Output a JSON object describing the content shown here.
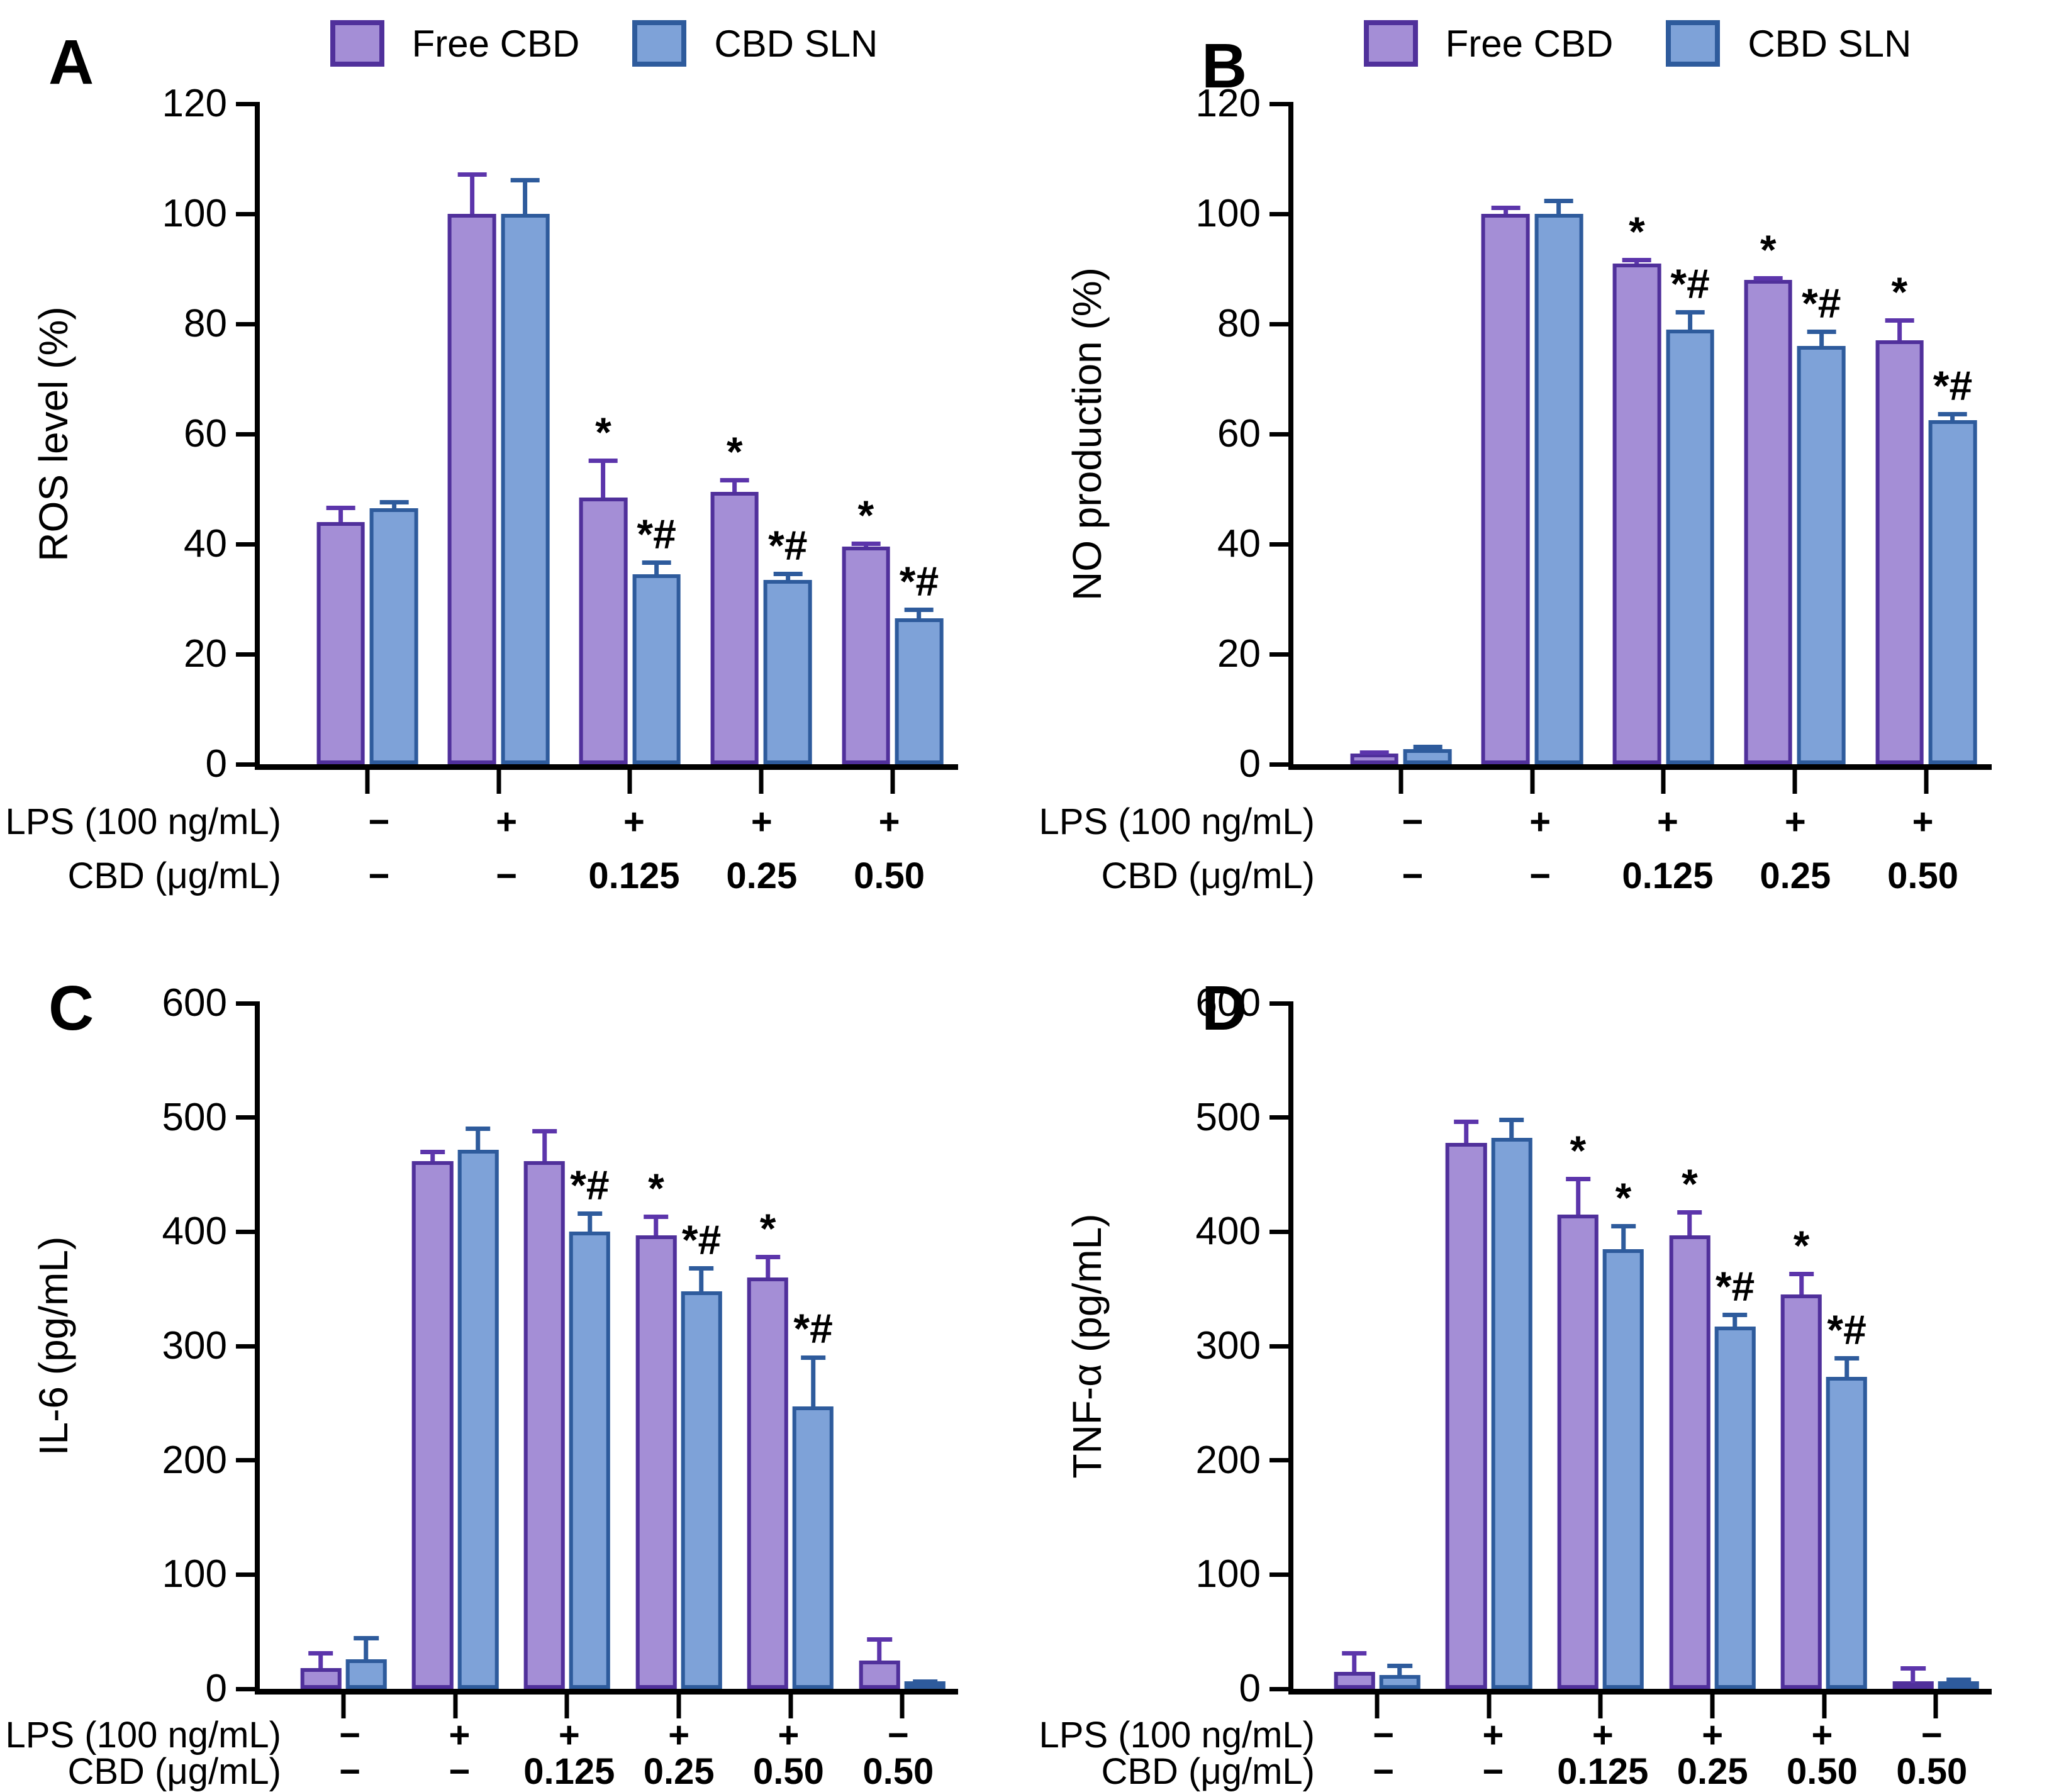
{
  "legend": {
    "items": [
      {
        "label": "Free CBD",
        "swatch": "purple-swatch"
      },
      {
        "label": "CBD SLN",
        "swatch": "blue-swatch"
      }
    ]
  },
  "colors": {
    "free_cbd_fill": "#a48ed6",
    "free_cbd_border": "#50309b",
    "free_cbd_error": "#5c35ab",
    "cbd_sln_fill": "#7ea2d8",
    "cbd_sln_border": "#2e5b9c",
    "cbd_sln_error": "#2e5b9c",
    "axis": "#000000"
  },
  "chart_data": [
    {
      "panel_label": "A",
      "type": "bar",
      "ylabel": "ROS level (%)",
      "ylim": [
        0,
        120
      ],
      "yticks": [
        0,
        20,
        40,
        60,
        80,
        100,
        120
      ],
      "series": [
        "Free CBD",
        "CBD SLN"
      ],
      "legend_position": "top",
      "grid": false,
      "xrows": [
        {
          "label": "LPS (100 ng/mL)"
        },
        {
          "label": "CBD (μg/mL)"
        }
      ],
      "groups": [
        {
          "lps": "−",
          "cbd": "−",
          "bars": [
            {
              "value": 44,
              "error": 3,
              "sig": ""
            },
            {
              "value": 46.5,
              "error": 1.5,
              "sig": ""
            }
          ]
        },
        {
          "lps": "+",
          "cbd": "−",
          "bars": [
            {
              "value": 100,
              "error": 7.5,
              "sig": ""
            },
            {
              "value": 100,
              "error": 6.5,
              "sig": ""
            }
          ]
        },
        {
          "lps": "+",
          "cbd": "0.125",
          "bars": [
            {
              "value": 48.5,
              "error": 7,
              "sig": "*"
            },
            {
              "value": 34.5,
              "error": 2.5,
              "sig": "*#"
            }
          ]
        },
        {
          "lps": "+",
          "cbd": "0.25",
          "bars": [
            {
              "value": 49.5,
              "error": 2.5,
              "sig": "*"
            },
            {
              "value": 33.5,
              "error": 1.5,
              "sig": "*#"
            }
          ]
        },
        {
          "lps": "+",
          "cbd": "0.50",
          "bars": [
            {
              "value": 39.5,
              "error": 1,
              "sig": "*"
            },
            {
              "value": 26.5,
              "error": 2,
              "sig": "*#"
            }
          ]
        }
      ]
    },
    {
      "panel_label": "B",
      "type": "bar",
      "ylabel": "NO production (%)",
      "ylim": [
        0,
        120
      ],
      "yticks": [
        0,
        20,
        40,
        60,
        80,
        100,
        120
      ],
      "series": [
        "Free CBD",
        "CBD SLN"
      ],
      "legend_position": "top",
      "grid": false,
      "xrows": [
        {
          "label": "LPS (100 ng/mL)"
        },
        {
          "label": "CBD (μg/mL)"
        }
      ],
      "groups": [
        {
          "lps": "−",
          "cbd": "−",
          "bars": [
            {
              "value": 2,
              "error": 0.5,
              "sig": ""
            },
            {
              "value": 2.7,
              "error": 0.8,
              "sig": ""
            }
          ]
        },
        {
          "lps": "+",
          "cbd": "−",
          "bars": [
            {
              "value": 100,
              "error": 1.5,
              "sig": ""
            },
            {
              "value": 100,
              "error": 2.7,
              "sig": ""
            }
          ]
        },
        {
          "lps": "+",
          "cbd": "0.125",
          "bars": [
            {
              "value": 91,
              "error": 1,
              "sig": "*"
            },
            {
              "value": 79,
              "error": 3.5,
              "sig": "*#"
            }
          ]
        },
        {
          "lps": "+",
          "cbd": "0.25",
          "bars": [
            {
              "value": 88,
              "error": 0.7,
              "sig": "*"
            },
            {
              "value": 76,
              "error": 3,
              "sig": "*#"
            }
          ]
        },
        {
          "lps": "+",
          "cbd": "0.50",
          "bars": [
            {
              "value": 77,
              "error": 4,
              "sig": "*"
            },
            {
              "value": 62.5,
              "error": 1.5,
              "sig": "*#"
            }
          ]
        }
      ]
    },
    {
      "panel_label": "C",
      "type": "bar",
      "ylabel": "IL-6 (pg/mL)",
      "ylim": [
        0,
        600
      ],
      "yticks": [
        0,
        100,
        200,
        300,
        400,
        500,
        600
      ],
      "series": [
        "Free CBD",
        "CBD SLN"
      ],
      "legend_position": "none",
      "grid": false,
      "xrows": [
        {
          "label": "LPS (100 ng/mL)"
        },
        {
          "label": "CBD (μg/mL)"
        }
      ],
      "groups": [
        {
          "lps": "−",
          "cbd": "−",
          "bars": [
            {
              "value": 18,
              "error": 15,
              "sig": ""
            },
            {
              "value": 26,
              "error": 20,
              "sig": ""
            }
          ]
        },
        {
          "lps": "+",
          "cbd": "−",
          "bars": [
            {
              "value": 462,
              "error": 10,
              "sig": ""
            },
            {
              "value": 472,
              "error": 20,
              "sig": ""
            }
          ]
        },
        {
          "lps": "+",
          "cbd": "0.125",
          "bars": [
            {
              "value": 462,
              "error": 28,
              "sig": ""
            },
            {
              "value": 400,
              "error": 18,
              "sig": "*#"
            }
          ]
        },
        {
          "lps": "+",
          "cbd": "0.25",
          "bars": [
            {
              "value": 397,
              "error": 18,
              "sig": "*"
            },
            {
              "value": 348,
              "error": 22,
              "sig": "*#"
            }
          ]
        },
        {
          "lps": "+",
          "cbd": "0.50",
          "bars": [
            {
              "value": 360,
              "error": 20,
              "sig": "*"
            },
            {
              "value": 247,
              "error": 45,
              "sig": "*#"
            }
          ]
        },
        {
          "lps": "−",
          "cbd": "0.50",
          "bars": [
            {
              "value": 25,
              "error": 20,
              "sig": ""
            },
            {
              "value": 2,
              "error": 6,
              "sig": ""
            }
          ]
        }
      ]
    },
    {
      "panel_label": "D",
      "type": "bar",
      "ylabel": "TNF-α (pg/mL)",
      "ylim": [
        0,
        600
      ],
      "yticks": [
        0,
        100,
        200,
        300,
        400,
        500,
        600
      ],
      "series": [
        "Free CBD",
        "CBD SLN"
      ],
      "legend_position": "none",
      "grid": false,
      "xrows": [
        {
          "label": "LPS (100 ng/mL)"
        },
        {
          "label": "CBD (μg/mL)"
        }
      ],
      "groups": [
        {
          "lps": "−",
          "cbd": "−",
          "bars": [
            {
              "value": 15,
              "error": 18,
              "sig": ""
            },
            {
              "value": 12,
              "error": 10,
              "sig": ""
            }
          ]
        },
        {
          "lps": "+",
          "cbd": "−",
          "bars": [
            {
              "value": 478,
              "error": 20,
              "sig": ""
            },
            {
              "value": 482,
              "error": 18,
              "sig": ""
            }
          ]
        },
        {
          "lps": "+",
          "cbd": "0.125",
          "bars": [
            {
              "value": 415,
              "error": 33,
              "sig": "*"
            },
            {
              "value": 385,
              "error": 22,
              "sig": "*"
            }
          ]
        },
        {
          "lps": "+",
          "cbd": "0.25",
          "bars": [
            {
              "value": 397,
              "error": 22,
              "sig": "*"
            },
            {
              "value": 317,
              "error": 12,
              "sig": "*#"
            }
          ]
        },
        {
          "lps": "+",
          "cbd": "0.50",
          "bars": [
            {
              "value": 345,
              "error": 20,
              "sig": "*"
            },
            {
              "value": 273,
              "error": 18,
              "sig": "*#"
            }
          ]
        },
        {
          "lps": "−",
          "cbd": "0.50",
          "bars": [
            {
              "value": 5,
              "error": 15,
              "sig": ""
            },
            {
              "value": 1,
              "error": 9,
              "sig": ""
            }
          ]
        }
      ]
    }
  ]
}
